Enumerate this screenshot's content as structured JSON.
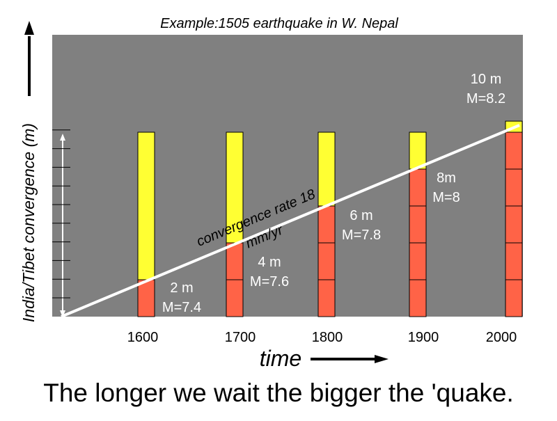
{
  "title": "Example:1505 earthquake in W. Nepal",
  "y_axis_label": "India/Tibet convergence (m)",
  "x_axis_label": "time",
  "caption": "The longer we wait the bigger the 'quake.",
  "rate_label_line1": "convergence rate 18",
  "rate_label_line2": "mm/yr",
  "colors": {
    "plot_background": "#808080",
    "released": "#ff6347",
    "accumulated": "#ffff33",
    "rate_line": "#ffffff",
    "label_text": "#ffffff"
  },
  "chart_data": {
    "type": "bar",
    "title": "Example:1505 earthquake in W. Nepal",
    "xlabel": "time",
    "ylabel": "India/Tibet convergence (m)",
    "categories": [
      "1600",
      "1700",
      "1800",
      "1900",
      "2000"
    ],
    "series": [
      {
        "values": [
          1,
          2,
          3,
          4,
          5
        ]
      },
      {
        "values": [
          4,
          3,
          2,
          1,
          0.3
        ]
      }
    ],
    "slip_labels": [
      {
        "slip": "2 m",
        "magnitude": "M=7.4"
      },
      {
        "slip": "4 m",
        "magnitude": "M=7.6"
      },
      {
        "slip": "6 m",
        "magnitude": "M=7.8"
      },
      {
        "slip": "8m",
        "magnitude": "M=8"
      },
      {
        "slip": "10 m",
        "magnitude": "M=8.2"
      }
    ],
    "convergence_rate": "convergence rate 18 mm/yr"
  }
}
